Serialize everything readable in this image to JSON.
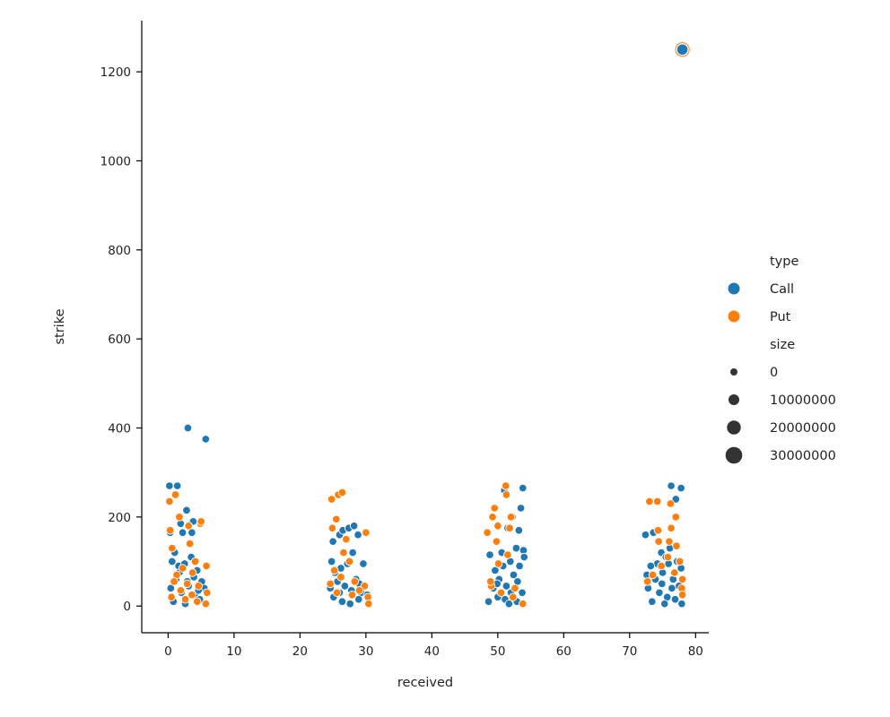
{
  "chart_data": {
    "type": "scatter",
    "title": "",
    "xlabel": "received",
    "ylabel": "strike",
    "xlim": [
      -4,
      82
    ],
    "ylim": [
      -60,
      1315
    ],
    "xticks": [
      0,
      10,
      20,
      30,
      40,
      50,
      60,
      70,
      80
    ],
    "yticks": [
      0,
      200,
      400,
      600,
      800,
      1000,
      1200
    ],
    "grid": false,
    "legend_position": "right",
    "hue_title": "type",
    "size_title": "size",
    "size_legend": [
      {
        "label": "0",
        "value": 0
      },
      {
        "label": "10000000",
        "value": 10000000
      },
      {
        "label": "20000000",
        "value": 20000000
      },
      {
        "label": "30000000",
        "value": 30000000
      }
    ],
    "colors": {
      "Call": "#1f77b4",
      "Put": "#ff7f0e",
      "size_marker": "#333333"
    },
    "series": [
      {
        "name": "Call",
        "color": "#1f77b4",
        "points": [
          [
            0.2,
            270
          ],
          [
            1.4,
            270
          ],
          [
            3.0,
            400
          ],
          [
            5.7,
            375
          ],
          [
            2.8,
            215
          ],
          [
            3.8,
            190
          ],
          [
            3.6,
            165
          ],
          [
            1.9,
            185
          ],
          [
            2.2,
            165
          ],
          [
            0.3,
            165
          ],
          [
            1.0,
            120
          ],
          [
            0.6,
            100
          ],
          [
            1.6,
            90
          ],
          [
            2.5,
            95
          ],
          [
            3.5,
            110
          ],
          [
            4.4,
            80
          ],
          [
            5.1,
            55
          ],
          [
            0.4,
            40
          ],
          [
            1.2,
            60
          ],
          [
            2.0,
            30
          ],
          [
            3.1,
            45
          ],
          [
            4.0,
            25
          ],
          [
            4.8,
            15
          ],
          [
            0.8,
            10
          ],
          [
            2.6,
            5
          ],
          [
            3.9,
            65
          ],
          [
            5.5,
            40
          ],
          [
            1.7,
            75
          ],
          [
            2.9,
            55
          ],
          [
            4.6,
            35
          ],
          [
            25.0,
            145
          ],
          [
            26.0,
            160
          ],
          [
            26.5,
            170
          ],
          [
            27.4,
            175
          ],
          [
            28.2,
            180
          ],
          [
            28.8,
            160
          ],
          [
            29.6,
            95
          ],
          [
            28.0,
            120
          ],
          [
            27.2,
            95
          ],
          [
            26.2,
            85
          ],
          [
            25.3,
            75
          ],
          [
            24.8,
            100
          ],
          [
            25.7,
            55
          ],
          [
            26.8,
            45
          ],
          [
            27.8,
            35
          ],
          [
            28.5,
            60
          ],
          [
            29.3,
            30
          ],
          [
            30.2,
            25
          ],
          [
            25.1,
            20
          ],
          [
            26.4,
            10
          ],
          [
            27.6,
            5
          ],
          [
            28.9,
            15
          ],
          [
            24.6,
            40
          ],
          [
            26.0,
            30
          ],
          [
            29.0,
            50
          ],
          [
            51.0,
            260
          ],
          [
            53.8,
            265
          ],
          [
            52.2,
            200
          ],
          [
            53.5,
            220
          ],
          [
            51.5,
            175
          ],
          [
            53.2,
            170
          ],
          [
            48.8,
            115
          ],
          [
            49.6,
            80
          ],
          [
            50.6,
            120
          ],
          [
            51.9,
            100
          ],
          [
            52.8,
            130
          ],
          [
            53.9,
            125
          ],
          [
            54.0,
            110
          ],
          [
            50.2,
            60
          ],
          [
            50.8,
            90
          ],
          [
            51.3,
            45
          ],
          [
            52.4,
            70
          ],
          [
            53.3,
            90
          ],
          [
            53.7,
            30
          ],
          [
            49.3,
            40
          ],
          [
            50.0,
            20
          ],
          [
            51.1,
            15
          ],
          [
            52.0,
            30
          ],
          [
            52.9,
            10
          ],
          [
            48.6,
            10
          ],
          [
            49.9,
            50
          ],
          [
            53.0,
            55
          ],
          [
            51.7,
            5
          ],
          [
            76.3,
            270
          ],
          [
            77.0,
            240
          ],
          [
            77.8,
            265
          ],
          [
            72.4,
            160
          ],
          [
            73.6,
            165
          ],
          [
            74.8,
            120
          ],
          [
            75.5,
            110
          ],
          [
            76.1,
            130
          ],
          [
            77.2,
            100
          ],
          [
            77.8,
            85
          ],
          [
            75.9,
            95
          ],
          [
            74.2,
            95
          ],
          [
            73.2,
            90
          ],
          [
            72.6,
            70
          ],
          [
            73.9,
            60
          ],
          [
            75.0,
            75
          ],
          [
            76.6,
            60
          ],
          [
            77.5,
            45
          ],
          [
            78.0,
            30
          ],
          [
            72.8,
            40
          ],
          [
            74.5,
            30
          ],
          [
            75.7,
            20
          ],
          [
            76.9,
            15
          ],
          [
            77.9,
            5
          ],
          [
            73.4,
            10
          ],
          [
            74.9,
            50
          ],
          [
            76.4,
            40
          ],
          [
            75.3,
            5
          ],
          [
            78.0,
            1250
          ]
        ]
      },
      {
        "name": "Put",
        "color": "#ff7f0e",
        "points": [
          [
            0.2,
            235
          ],
          [
            1.1,
            250
          ],
          [
            1.7,
            200
          ],
          [
            3.1,
            180
          ],
          [
            4.9,
            185
          ],
          [
            5.0,
            190
          ],
          [
            3.3,
            140
          ],
          [
            0.3,
            170
          ],
          [
            0.6,
            130
          ],
          [
            5.8,
            90
          ],
          [
            4.1,
            100
          ],
          [
            3.7,
            75
          ],
          [
            2.2,
            85
          ],
          [
            1.3,
            70
          ],
          [
            0.9,
            55
          ],
          [
            2.9,
            50
          ],
          [
            4.6,
            45
          ],
          [
            5.9,
            30
          ],
          [
            5.7,
            5
          ],
          [
            4.4,
            10
          ],
          [
            1.9,
            35
          ],
          [
            3.6,
            25
          ],
          [
            0.5,
            20
          ],
          [
            2.6,
            15
          ],
          [
            24.8,
            240
          ],
          [
            25.8,
            250
          ],
          [
            26.4,
            255
          ],
          [
            25.5,
            195
          ],
          [
            24.9,
            175
          ],
          [
            30.0,
            165
          ],
          [
            27.0,
            150
          ],
          [
            26.6,
            120
          ],
          [
            27.5,
            100
          ],
          [
            25.2,
            80
          ],
          [
            26.2,
            65
          ],
          [
            28.3,
            55
          ],
          [
            29.8,
            45
          ],
          [
            30.3,
            20
          ],
          [
            30.4,
            5
          ],
          [
            24.6,
            50
          ],
          [
            27.9,
            25
          ],
          [
            29.0,
            35
          ],
          [
            25.6,
            30
          ],
          [
            51.2,
            270
          ],
          [
            51.3,
            250
          ],
          [
            49.5,
            220
          ],
          [
            49.2,
            200
          ],
          [
            50.0,
            180
          ],
          [
            52.0,
            200
          ],
          [
            51.8,
            175
          ],
          [
            48.4,
            165
          ],
          [
            49.8,
            145
          ],
          [
            51.5,
            115
          ],
          [
            50.1,
            95
          ],
          [
            49.0,
            45
          ],
          [
            52.6,
            40
          ],
          [
            53.8,
            5
          ],
          [
            50.5,
            30
          ],
          [
            52.3,
            20
          ],
          [
            48.9,
            55
          ],
          [
            73.0,
            235
          ],
          [
            74.2,
            235
          ],
          [
            76.2,
            230
          ],
          [
            77.0,
            200
          ],
          [
            76.3,
            175
          ],
          [
            74.3,
            170
          ],
          [
            74.4,
            145
          ],
          [
            76.0,
            145
          ],
          [
            77.1,
            135
          ],
          [
            78.0,
            60
          ],
          [
            77.9,
            40
          ],
          [
            78.0,
            25
          ],
          [
            75.8,
            110
          ],
          [
            73.5,
            70
          ],
          [
            72.7,
            55
          ],
          [
            74.8,
            90
          ],
          [
            76.8,
            75
          ],
          [
            77.6,
            100
          ]
        ]
      }
    ],
    "outlier_size_note": "point at received 78, strike 1250 has the largest size"
  }
}
